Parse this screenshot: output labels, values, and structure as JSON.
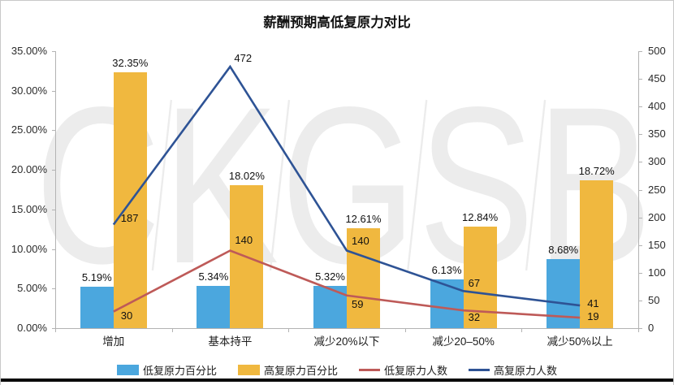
{
  "title": "薪酬预期高低复原力对比",
  "watermark_letters": [
    "C",
    "K",
    "G",
    "S",
    "B"
  ],
  "chart_data": {
    "type": "combo-bar-line",
    "title": "薪酬预期高低复原力对比",
    "categories": [
      "增加",
      "基本持平",
      "减少20%以下",
      "减少20–50%",
      "减少50%以上"
    ],
    "series": [
      {
        "name": "低复原力百分比",
        "type": "bar",
        "axis": "left",
        "color": "#4BA7DE",
        "values": [
          5.19,
          5.34,
          5.32,
          6.13,
          8.68
        ],
        "labels": [
          "5.19%",
          "5.34%",
          "5.32%",
          "6.13%",
          "8.68%"
        ]
      },
      {
        "name": "高复原力百分比",
        "type": "bar",
        "axis": "left",
        "color": "#F0B83F",
        "values": [
          32.35,
          18.02,
          12.61,
          12.84,
          18.72
        ],
        "labels": [
          "32.35%",
          "18.02%",
          "12.61%",
          "12.84%",
          "18.72%"
        ]
      },
      {
        "name": "低复原力人数",
        "type": "line",
        "axis": "right",
        "color": "#BE5A58",
        "values": [
          30,
          140,
          59,
          32,
          19
        ],
        "labels": [
          "30",
          "140",
          "59",
          "32",
          "19"
        ]
      },
      {
        "name": "高复原力人数",
        "type": "line",
        "axis": "right",
        "color": "#2E5395",
        "values": [
          187,
          472,
          140,
          67,
          41
        ],
        "labels": [
          "187",
          "472",
          "140",
          "67",
          "41"
        ]
      }
    ],
    "left_axis": {
      "min": 0,
      "max": 35,
      "step": 5,
      "tick_labels": [
        "0.00%",
        "5.00%",
        "10.00%",
        "15.00%",
        "20.00%",
        "25.00%",
        "30.00%",
        "35.00%"
      ]
    },
    "right_axis": {
      "min": 0,
      "max": 500,
      "step": 50,
      "tick_labels": [
        "0",
        "50",
        "100",
        "150",
        "200",
        "250",
        "300",
        "350",
        "400",
        "450",
        "500"
      ]
    },
    "grid": "off",
    "legend_position": "bottom"
  }
}
